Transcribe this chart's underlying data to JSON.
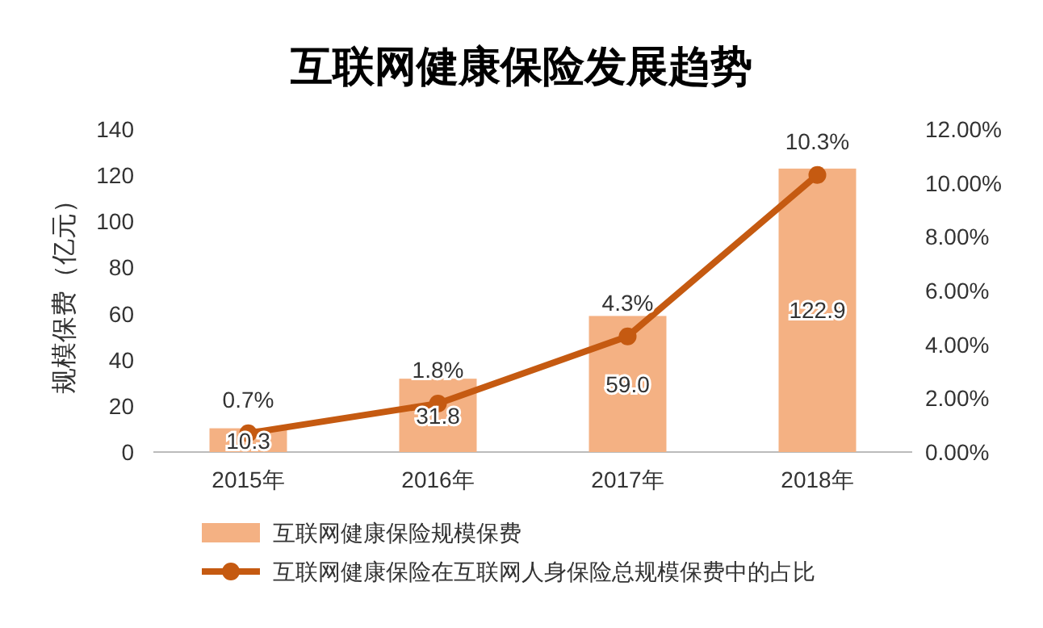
{
  "chart_data": {
    "type": "bar",
    "title": "互联网健康保险发展趋势",
    "ylabel": "规模保费（亿元）",
    "categories": [
      "2015年",
      "2016年",
      "2017年",
      "2018年"
    ],
    "ylim": [
      0,
      140
    ],
    "yticks": [
      0,
      20,
      40,
      60,
      80,
      100,
      120,
      140
    ],
    "y2lim": [
      0,
      12
    ],
    "y2ticks": [
      {
        "value": 0,
        "label": "0.00%"
      },
      {
        "value": 2,
        "label": "2.00%"
      },
      {
        "value": 4,
        "label": "4.00%"
      },
      {
        "value": 6,
        "label": "6.00%"
      },
      {
        "value": 8,
        "label": "8.00%"
      },
      {
        "value": 10,
        "label": "10.00%"
      },
      {
        "value": 12,
        "label": "12.00%"
      }
    ],
    "legend": "bottom",
    "marker": "circle",
    "series": [
      {
        "name": "互联网健康保险规模保费",
        "color": "#f4b183",
        "values": [
          10.3,
          31.8,
          59.0,
          122.9
        ],
        "value_labels": [
          "10.3",
          "31.8",
          "59.0",
          "122.9"
        ]
      },
      {
        "name": "互联网健康保险在互联网人身保险总规模保费中的占比",
        "type": "line",
        "axis": "y2",
        "color": "#c55a11",
        "values": [
          0.7,
          1.8,
          4.3,
          10.3
        ],
        "value_labels": [
          "0.7%",
          "1.8%",
          "4.3%",
          "10.3%"
        ]
      }
    ]
  }
}
